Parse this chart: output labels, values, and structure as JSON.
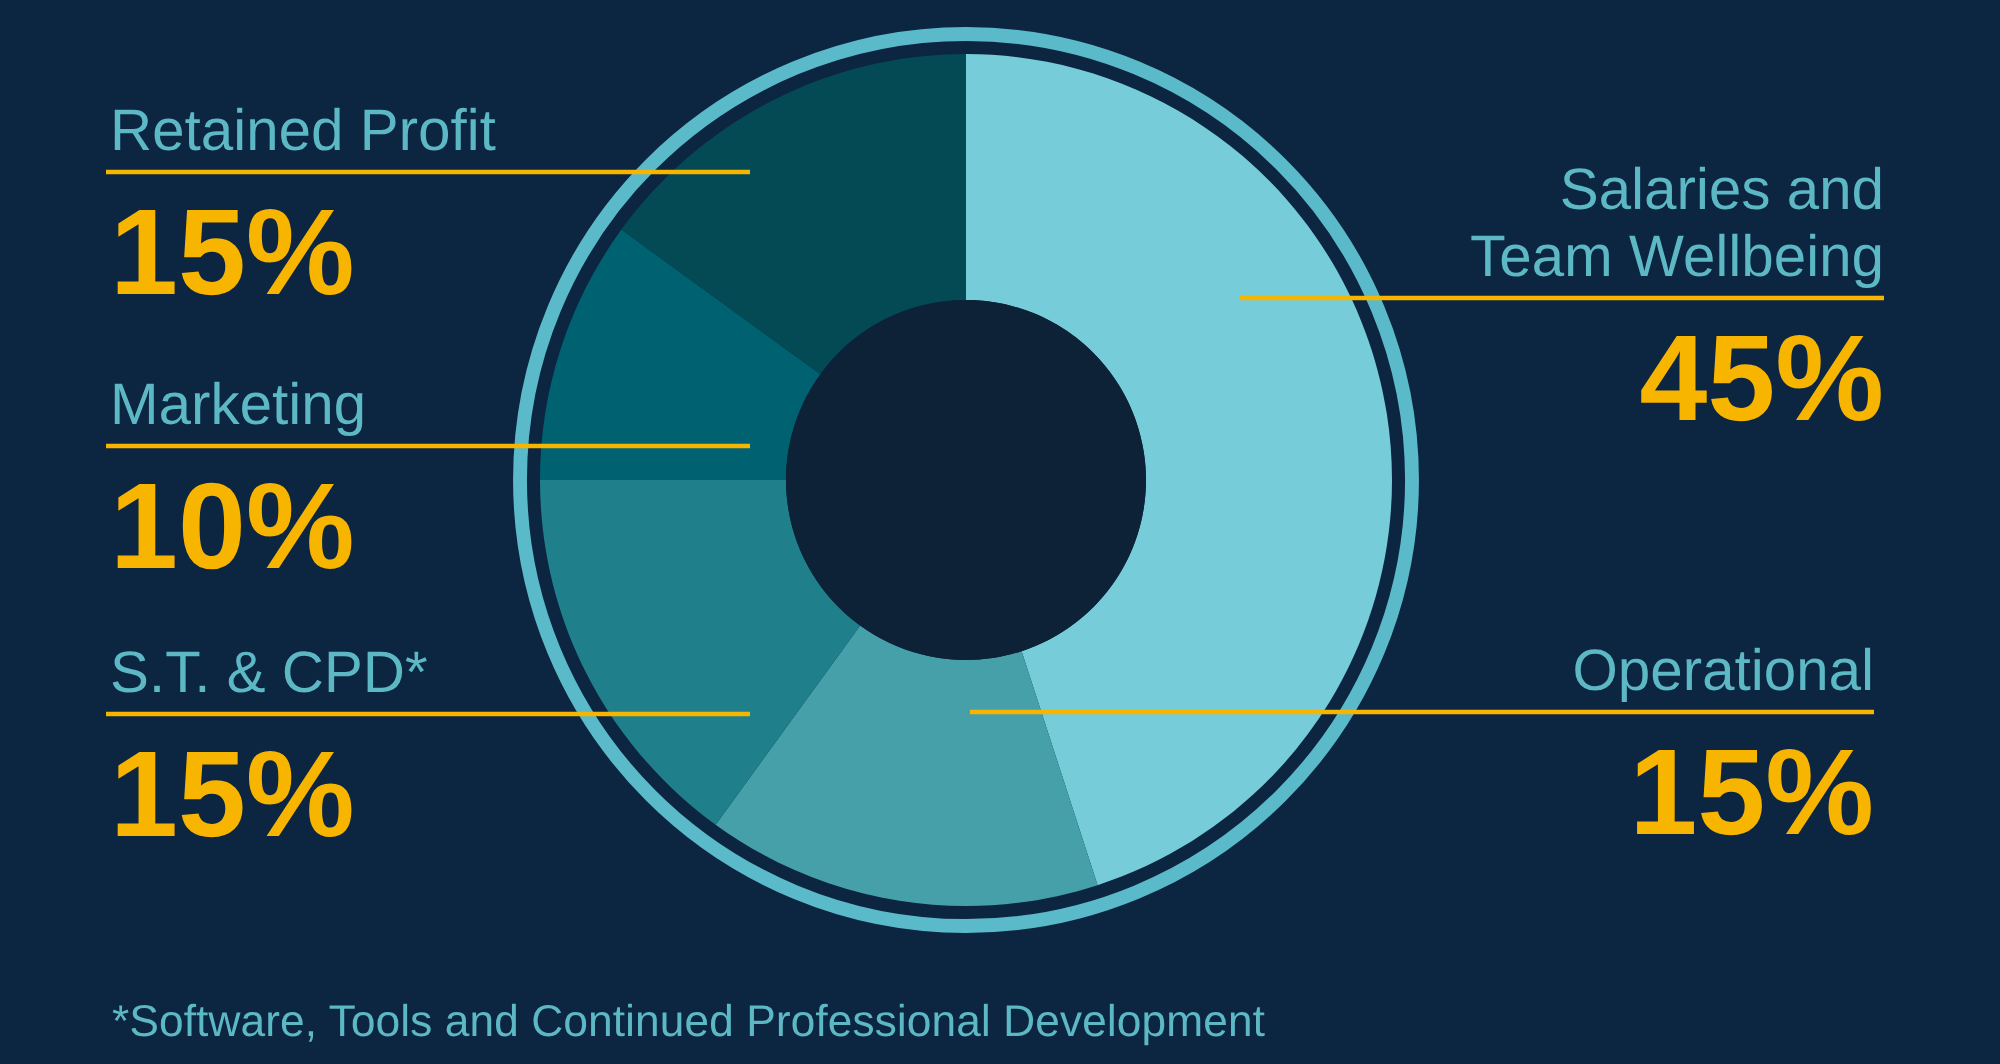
{
  "chart_data": {
    "type": "donut",
    "categories": [
      "Salaries and\nTeam Wellbeing",
      "Operational",
      "S.T. & CPD*",
      "Marketing",
      "Retained Profit"
    ],
    "values": [
      45,
      15,
      15,
      10,
      15
    ],
    "colors": [
      "#76cdd9",
      "#46a0aa",
      "#1f808c",
      "#006170",
      "#034a55"
    ],
    "value_labels": [
      "45%",
      "15%",
      "15%",
      "10%",
      "15%"
    ],
    "annotations": [
      "*Software, Tools and Continued Professional Development"
    ]
  }
}
